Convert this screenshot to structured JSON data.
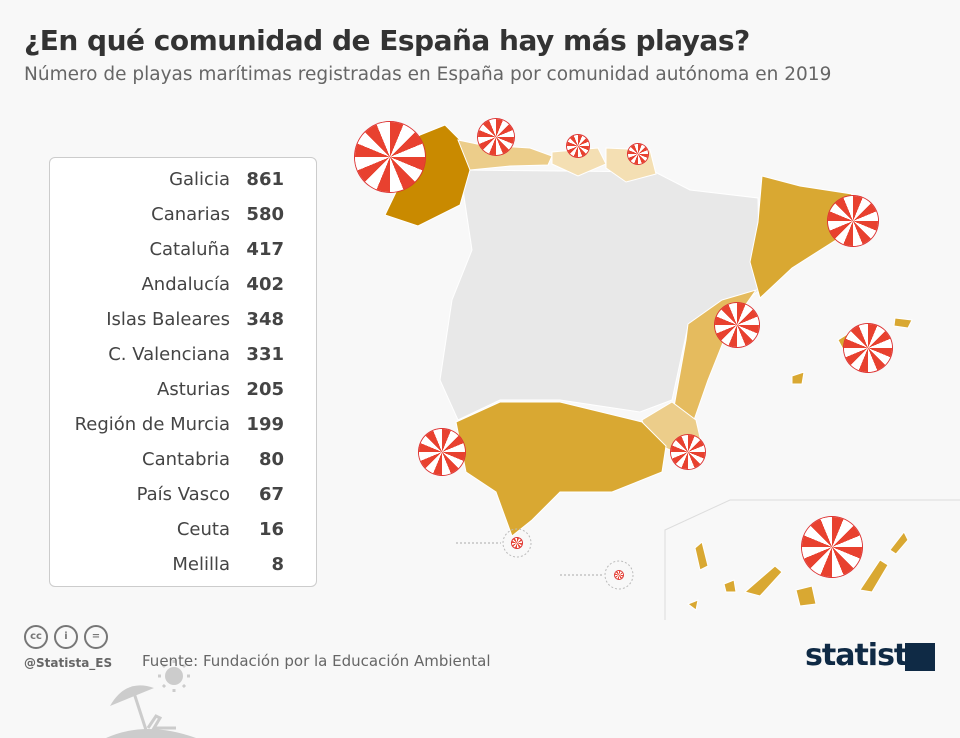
{
  "title": "¿En qué comunidad de España hay más playas?",
  "subtitle": "Número de playas marítimas registradas en España por comunidad autónoma en 2019",
  "chart_data": {
    "type": "table",
    "categories": [
      "Galicia",
      "Canarias",
      "Cataluña",
      "Andalucía",
      "Islas Baleares",
      "C. Valenciana",
      "Asturias",
      "Región de Murcia",
      "Cantabria",
      "País Vasco",
      "Ceuta",
      "Melilla"
    ],
    "values": [
      861,
      580,
      417,
      402,
      348,
      331,
      205,
      199,
      80,
      67,
      16,
      8
    ]
  },
  "colors": {
    "background": "#f8f8f8",
    "no_data": "#e8e8e8",
    "highest": "#c98a00",
    "high": "#d9a832",
    "mid": "#e5bb5e",
    "low": "#eccd8a",
    "lowest": "#f4dfb3",
    "umbrella_red": "#e8412f"
  },
  "footer": {
    "handle": "@Statista_ES",
    "source": "Fuente: Fundación por la Educación Ambiental",
    "logo": "statista",
    "license_icons": [
      "cc",
      "by",
      "nd"
    ]
  }
}
